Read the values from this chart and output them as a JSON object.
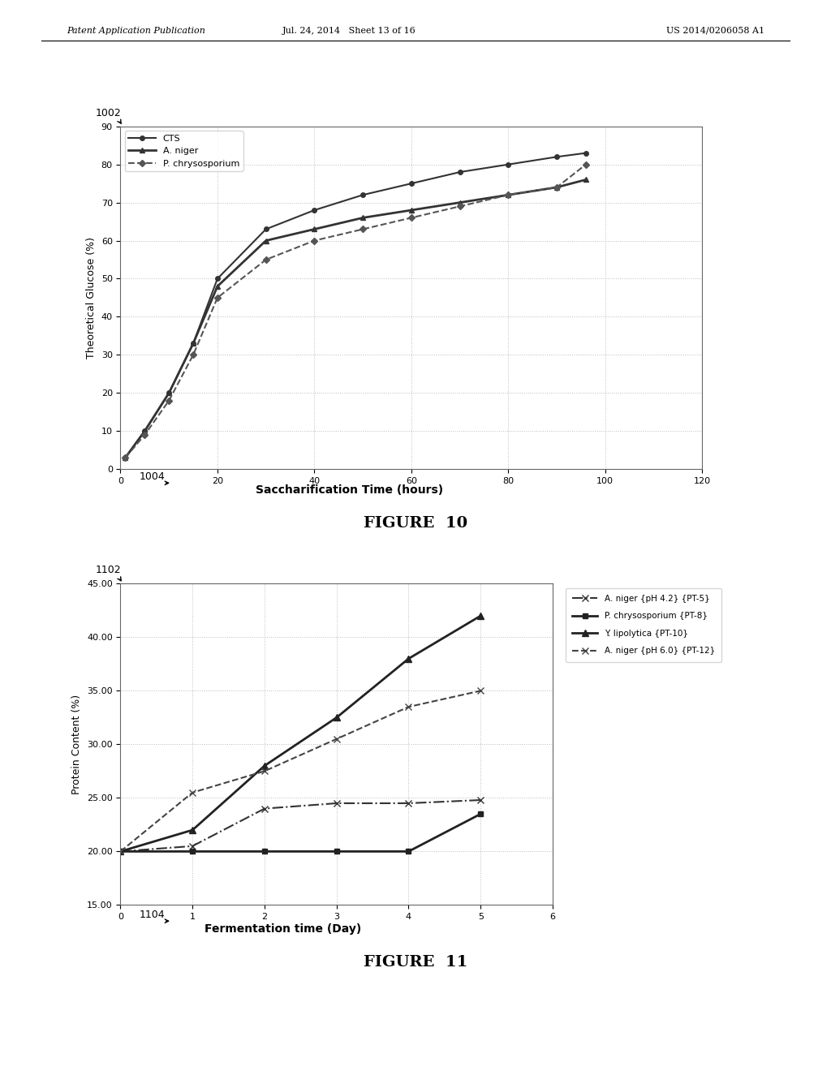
{
  "fig10": {
    "title": "FIGURE 10",
    "xlabel": "Saccharification Time (hours)",
    "ylabel": "Theoretical Glucose (%)",
    "xlabel_label": "1004",
    "corner_label": "1002",
    "xlim": [
      0,
      120
    ],
    "ylim": [
      0,
      90
    ],
    "xticks": [
      0,
      20,
      40,
      60,
      80,
      100,
      120
    ],
    "yticks": [
      0,
      10,
      20,
      30,
      40,
      50,
      60,
      70,
      80,
      90
    ],
    "series": [
      {
        "label": "CTS",
        "x": [
          1,
          5,
          10,
          15,
          20,
          30,
          40,
          50,
          60,
          70,
          80,
          90,
          96
        ],
        "y": [
          3,
          10,
          20,
          33,
          50,
          63,
          68,
          72,
          75,
          78,
          80,
          82,
          83
        ],
        "color": "#333333",
        "linestyle": "-",
        "marker": "o",
        "markersize": 4,
        "linewidth": 1.5
      },
      {
        "label": "A. niger",
        "x": [
          1,
          5,
          10,
          15,
          20,
          30,
          40,
          50,
          60,
          70,
          80,
          90,
          96
        ],
        "y": [
          3,
          10,
          20,
          33,
          48,
          60,
          63,
          66,
          68,
          70,
          72,
          74,
          76
        ],
        "color": "#333333",
        "linestyle": "-",
        "marker": "^",
        "markersize": 5,
        "linewidth": 2.0
      },
      {
        "label": "P. chrysosporium",
        "x": [
          1,
          5,
          10,
          15,
          20,
          30,
          40,
          50,
          60,
          70,
          80,
          90,
          96
        ],
        "y": [
          3,
          9,
          18,
          30,
          45,
          55,
          60,
          63,
          66,
          69,
          72,
          74,
          80
        ],
        "color": "#555555",
        "linestyle": "--",
        "marker": "D",
        "markersize": 4,
        "linewidth": 1.5
      }
    ]
  },
  "fig11": {
    "title": "FIGURE 11",
    "xlabel": "Fermentation time (Day)",
    "ylabel": "Protein Content (%)",
    "xlabel_label": "1104",
    "corner_label": "1102",
    "xlim": [
      0,
      6
    ],
    "ylim": [
      15,
      45
    ],
    "xticks": [
      0,
      1,
      2,
      3,
      4,
      5,
      6
    ],
    "yticks": [
      15.0,
      20.0,
      25.0,
      30.0,
      35.0,
      40.0,
      45.0
    ],
    "series": [
      {
        "label": "A. niger {pH 4.2} {PT-5}",
        "x": [
          0,
          1,
          2,
          3,
          4,
          5
        ],
        "y": [
          20.0,
          20.5,
          24.0,
          24.5,
          24.5,
          24.8
        ],
        "color": "#333333",
        "linestyle": "-.",
        "marker": "x",
        "markersize": 6,
        "linewidth": 1.5
      },
      {
        "label": "P. chrysosporium {PT-8}",
        "x": [
          0,
          1,
          2,
          3,
          4,
          5
        ],
        "y": [
          20.0,
          20.0,
          20.0,
          20.0,
          20.0,
          23.5
        ],
        "color": "#222222",
        "linestyle": "-",
        "marker": "s",
        "markersize": 5,
        "linewidth": 2.0
      },
      {
        "label": "Y. lipolytica {PT-10}",
        "x": [
          0,
          1,
          2,
          3,
          4,
          5
        ],
        "y": [
          20.0,
          22.0,
          28.0,
          32.5,
          38.0,
          42.0
        ],
        "color": "#222222",
        "linestyle": "-",
        "marker": "^",
        "markersize": 6,
        "linewidth": 2.0
      },
      {
        "label": "A. niger {pH 6.0} {PT-12}",
        "x": [
          0,
          1,
          2,
          3,
          4,
          5
        ],
        "y": [
          20.0,
          25.5,
          27.5,
          30.5,
          33.5,
          35.0
        ],
        "color": "#444444",
        "linestyle": "--",
        "marker": "x",
        "markersize": 6,
        "linewidth": 1.5
      }
    ]
  },
  "page_header_left": "Patent Application Publication",
  "page_header_mid": "Jul. 24, 2014   Sheet 13 of 16",
  "page_header_right": "US 2014/0206058 A1",
  "bg_color": "#ffffff",
  "plot_bg_color": "#ffffff",
  "grid_color": "#aaaaaa",
  "text_color": "#000000"
}
